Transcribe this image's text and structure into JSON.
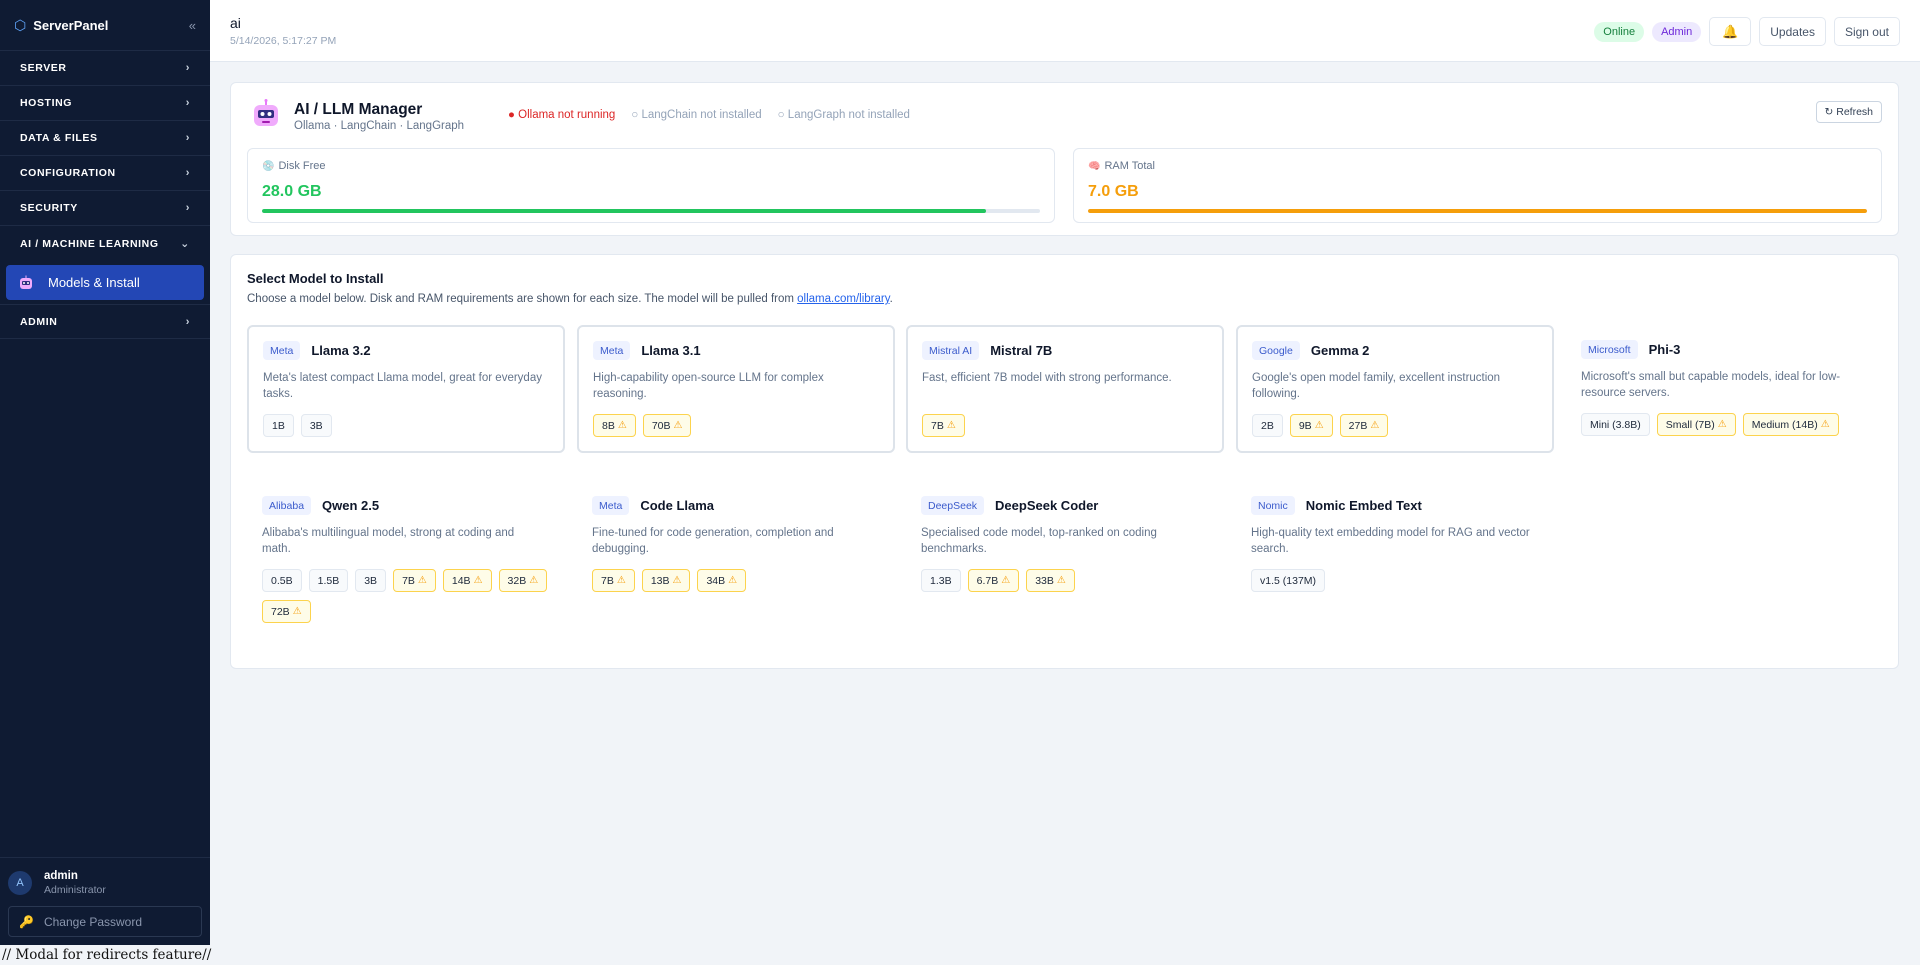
{
  "sidebar": {
    "brand": "ServerPanel",
    "groups": [
      {
        "label": "SERVER"
      },
      {
        "label": "HOSTING"
      },
      {
        "label": "DATA & FILES"
      },
      {
        "label": "CONFIGURATION"
      },
      {
        "label": "SECURITY"
      },
      {
        "label": "AI / MACHINE LEARNING"
      },
      {
        "label": "ADMIN"
      }
    ],
    "active_item": "Models & Install",
    "user": {
      "name": "admin",
      "role": "Administrator",
      "avatar_letter": "A"
    },
    "change_password": "Change Password"
  },
  "header": {
    "title": "ai",
    "timestamp": "5/14/2026, 5:17:27 PM",
    "status_online": "Online",
    "role_badge": "Admin",
    "updates": "Updates",
    "sign_out": "Sign out"
  },
  "manager": {
    "title": "AI / LLM Manager",
    "subtitle": "Ollama · LangChain · LangGraph",
    "status_ollama": "● Ollama not running",
    "status_langchain": "○ LangChain not installed",
    "status_langgraph": "○ LangGraph not installed",
    "refresh": "↻ Refresh",
    "disk_label": "Disk Free",
    "disk_value": "28.0 GB",
    "disk_fill_fraction": 0.93,
    "ram_label": "RAM Total",
    "ram_value": "7.0 GB",
    "ram_fill_fraction": 1.0,
    "colors": {
      "disk": "#22c55e",
      "ram": "#f59e0b",
      "status_error": "#dc2626"
    }
  },
  "select": {
    "title": "Select Model to Install",
    "desc": "Choose a model below. Disk and RAM requirements are shown for each size. The model will be pulled from ",
    "link": "ollama.com/library",
    "desc_end": "."
  },
  "models": [
    {
      "vendor": "Meta",
      "name": "Llama 3.2",
      "desc": "Meta's latest compact Llama model, great for everyday tasks.",
      "sizes": [
        {
          "label": "1B",
          "warn": false
        },
        {
          "label": "3B",
          "warn": false
        }
      ]
    },
    {
      "vendor": "Meta",
      "name": "Llama 3.1",
      "desc": "High-capability open-source LLM for complex reasoning.",
      "sizes": [
        {
          "label": "8B",
          "warn": true
        },
        {
          "label": "70B",
          "warn": true
        }
      ]
    },
    {
      "vendor": "Mistral AI",
      "name": "Mistral 7B",
      "desc": "Fast, efficient 7B model with strong performance.",
      "sizes": [
        {
          "label": "7B",
          "warn": true
        }
      ]
    },
    {
      "vendor": "Google",
      "name": "Gemma 2",
      "desc": "Google's open model family, excellent instruction following.",
      "sizes": [
        {
          "label": "2B",
          "warn": false
        },
        {
          "label": "9B",
          "warn": true
        },
        {
          "label": "27B",
          "warn": true
        }
      ]
    },
    {
      "vendor": "Microsoft",
      "name": "Phi-3",
      "desc": "Microsoft's small but capable models, ideal for low-resource servers.",
      "sizes": [
        {
          "label": "Mini (3.8B)",
          "warn": false
        },
        {
          "label": "Small (7B)",
          "warn": true
        },
        {
          "label": "Medium (14B)",
          "warn": true
        }
      ]
    },
    {
      "vendor": "Alibaba",
      "name": "Qwen 2.5",
      "desc": "Alibaba's multilingual model, strong at coding and math.",
      "sizes": [
        {
          "label": "0.5B",
          "warn": false
        },
        {
          "label": "1.5B",
          "warn": false
        },
        {
          "label": "3B",
          "warn": false
        },
        {
          "label": "7B",
          "warn": true
        },
        {
          "label": "14B",
          "warn": true
        },
        {
          "label": "32B",
          "warn": true
        },
        {
          "label": "72B",
          "warn": true
        }
      ]
    },
    {
      "vendor": "Meta",
      "name": "Code Llama",
      "desc": "Fine-tuned for code generation, completion and debugging.",
      "sizes": [
        {
          "label": "7B",
          "warn": true
        },
        {
          "label": "13B",
          "warn": true
        },
        {
          "label": "34B",
          "warn": true
        }
      ]
    },
    {
      "vendor": "DeepSeek",
      "name": "DeepSeek Coder",
      "desc": "Specialised code model, top-ranked on coding benchmarks.",
      "sizes": [
        {
          "label": "1.3B",
          "warn": false
        },
        {
          "label": "6.7B",
          "warn": true
        },
        {
          "label": "33B",
          "warn": true
        }
      ]
    },
    {
      "vendor": "Nomic",
      "name": "Nomic Embed Text",
      "desc": "High-quality text embedding model for RAG and vector search.",
      "sizes": [
        {
          "label": "v1.5 (137M)",
          "warn": false
        }
      ]
    }
  ],
  "footer_text": "// Modal for redirects feature//"
}
